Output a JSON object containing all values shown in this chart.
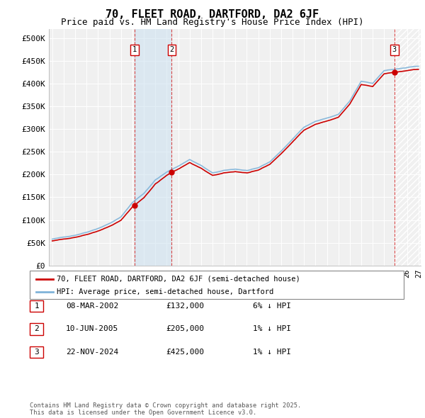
{
  "title": "70, FLEET ROAD, DARTFORD, DA2 6JF",
  "subtitle": "Price paid vs. HM Land Registry's House Price Index (HPI)",
  "ylim": [
    0,
    520000
  ],
  "yticks": [
    0,
    50000,
    100000,
    150000,
    200000,
    250000,
    300000,
    350000,
    400000,
    450000,
    500000
  ],
  "ytick_labels": [
    "£0",
    "£50K",
    "£100K",
    "£150K",
    "£200K",
    "£250K",
    "£300K",
    "£350K",
    "£400K",
    "£450K",
    "£500K"
  ],
  "sale_year_floats": [
    2002.18,
    2005.44,
    2024.9
  ],
  "sale_prices": [
    132000,
    205000,
    425000
  ],
  "sale_labels": [
    "1",
    "2",
    "3"
  ],
  "hpi_color": "#7fb3d9",
  "price_color": "#cc0000",
  "vline_color": "#cc0000",
  "shade_color": "#c8dff0",
  "hatch_color": "#f0f0f0",
  "legend_label_price": "70, FLEET ROAD, DARTFORD, DA2 6JF (semi-detached house)",
  "legend_label_hpi": "HPI: Average price, semi-detached house, Dartford",
  "table_data": [
    [
      "1",
      "08-MAR-2002",
      "£132,000",
      "6% ↓ HPI"
    ],
    [
      "2",
      "10-JUN-2005",
      "£205,000",
      "1% ↓ HPI"
    ],
    [
      "3",
      "22-NOV-2024",
      "£425,000",
      "1% ↓ HPI"
    ]
  ],
  "footnote": "Contains HM Land Registry data © Crown copyright and database right 2025.\nThis data is licensed under the Open Government Licence v3.0.",
  "background_color": "#f0f0f0",
  "grid_color": "#ffffff",
  "title_fontsize": 11,
  "subtitle_fontsize": 9,
  "axis_fontsize": 8
}
